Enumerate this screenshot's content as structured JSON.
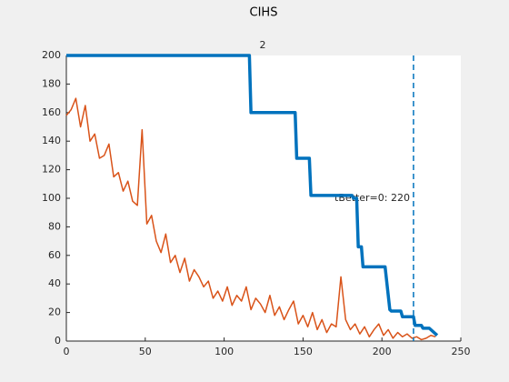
{
  "chart_data": {
    "type": "line",
    "title": "CIHS",
    "annotations": [
      "2",
      "tBetter=0: 220"
    ],
    "vline": {
      "x": 220,
      "color": "#0072bd"
    },
    "series": [
      {
        "color": "#0072bd",
        "x": [
          0,
          116,
          117,
          145,
          146,
          154,
          155,
          181,
          182,
          184,
          185,
          187,
          188,
          202,
          205,
          206,
          212,
          213,
          220,
          221,
          225,
          226,
          230,
          232,
          235
        ],
        "values": [
          200,
          200,
          160,
          160,
          128,
          128,
          102,
          102,
          100,
          100,
          66,
          66,
          52,
          52,
          22,
          21,
          21,
          17,
          17,
          11,
          11,
          9,
          9,
          7,
          4
        ]
      },
      {
        "color": "#d95319",
        "x": [
          0,
          3,
          6,
          9,
          12,
          15,
          18,
          21,
          24,
          27,
          30,
          33,
          36,
          39,
          42,
          45,
          48,
          51,
          54,
          57,
          60,
          63,
          66,
          69,
          72,
          75,
          78,
          81,
          84,
          87,
          90,
          93,
          96,
          99,
          102,
          105,
          108,
          111,
          114,
          117,
          120,
          123,
          126,
          129,
          132,
          135,
          138,
          141,
          144,
          147,
          150,
          153,
          156,
          159,
          162,
          165,
          168,
          171,
          174,
          177,
          180,
          183,
          186,
          189,
          192,
          195,
          198,
          201,
          204,
          207,
          210,
          213,
          216,
          219,
          222,
          225,
          228,
          231,
          234
        ],
        "values": [
          158,
          162,
          170,
          150,
          165,
          140,
          145,
          128,
          130,
          138,
          115,
          118,
          105,
          112,
          98,
          95,
          148,
          82,
          88,
          70,
          62,
          75,
          55,
          60,
          48,
          58,
          42,
          50,
          45,
          38,
          42,
          30,
          35,
          28,
          38,
          25,
          32,
          28,
          38,
          22,
          30,
          26,
          20,
          32,
          18,
          24,
          15,
          22,
          28,
          12,
          18,
          10,
          20,
          8,
          15,
          6,
          12,
          10,
          45,
          15,
          8,
          12,
          5,
          10,
          3,
          8,
          12,
          4,
          8,
          2,
          6,
          3,
          5,
          2,
          3,
          1,
          2,
          4,
          3
        ]
      }
    ],
    "xlim": [
      0,
      250
    ],
    "xticks": [
      0,
      50,
      100,
      150,
      200,
      250
    ],
    "ylim": [
      0,
      200
    ],
    "yticks": [
      0,
      20,
      40,
      60,
      80,
      100,
      120,
      140,
      160,
      180,
      200
    ]
  }
}
